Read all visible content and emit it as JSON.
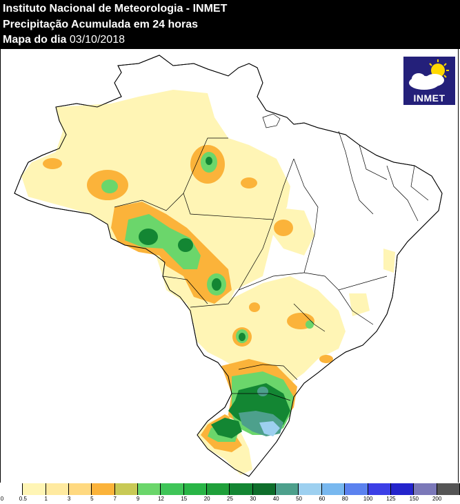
{
  "header": {
    "line1": "Instituto Nacional de Meteorologia - INMET",
    "line2": "Precipitação Acumulada em 24 horas",
    "line3_label": "Mapa do dia ",
    "line3_date": "03/10/2018"
  },
  "logo": {
    "text": "INMET",
    "icon": "sun-cloud-icon"
  },
  "legend": {
    "unit_ticks": [
      "0",
      "0.5",
      "1",
      "3",
      "5",
      "7",
      "9",
      "12",
      "15",
      "20",
      "25",
      "30",
      "40",
      "50",
      "60",
      "80",
      "100",
      "125",
      "150",
      "200"
    ],
    "colors": [
      "#ffffff",
      "#fff5b5",
      "#ffeaa0",
      "#ffd980",
      "#fbb33a",
      "#c8c955",
      "#6bd66b",
      "#3fc558",
      "#29b546",
      "#1fa03a",
      "#138633",
      "#0e6e2b",
      "#4da08c",
      "#9dd0f0",
      "#78b8ef",
      "#5b82ef",
      "#3c3fe6",
      "#2424cc",
      "#7b78b8",
      "#555555"
    ]
  }
}
